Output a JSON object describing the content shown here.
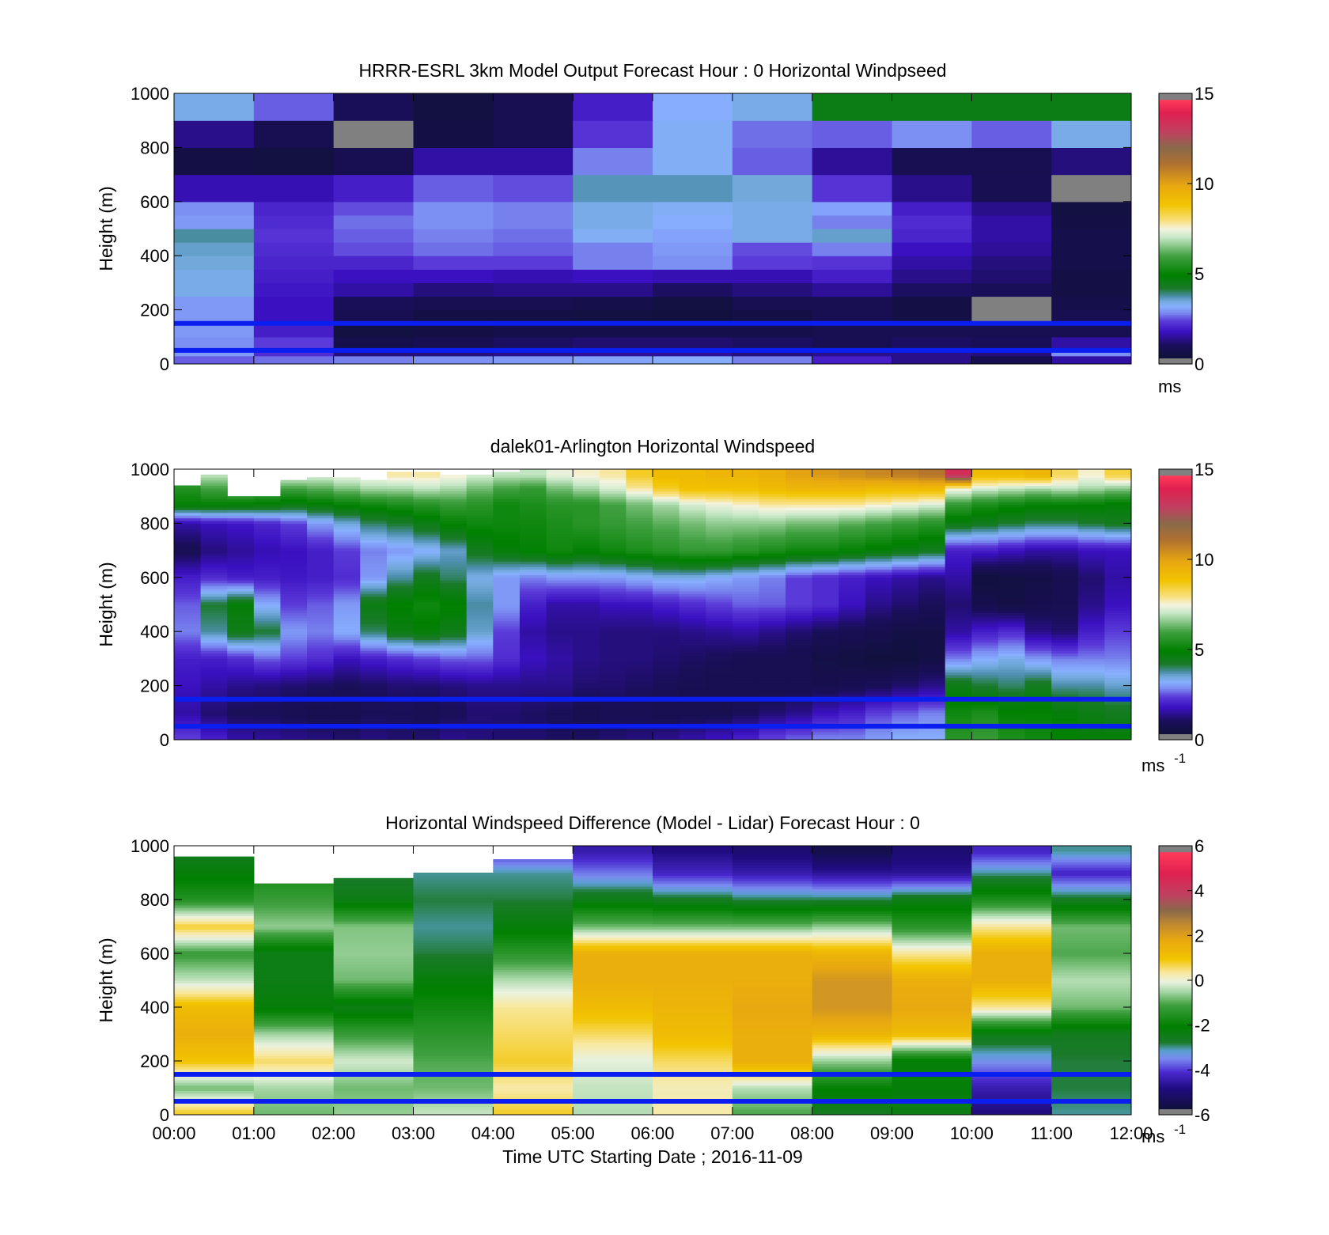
{
  "chart_data": [
    {
      "type": "heatmap",
      "title": "HRRR-ESRL 3km Model Output   Forecast Hour : 0 Horizontal Windpseed",
      "xlabel": "",
      "ylabel": "Height (m)",
      "xlim": [
        "00:00",
        "12:00"
      ],
      "ylim": [
        0,
        1000
      ],
      "yticks": [
        0,
        200,
        400,
        600,
        800,
        1000
      ],
      "colorbar": {
        "range": [
          0,
          15
        ],
        "ticks": [
          0,
          5,
          10,
          15
        ],
        "unit": "ms",
        "unit_sup": ""
      },
      "reference_lines_m": [
        150,
        50
      ],
      "grid": false,
      "n_time": 12,
      "height_bins": [
        0,
        30,
        60,
        100,
        150,
        200,
        250,
        300,
        350,
        400,
        450,
        500,
        550,
        600,
        700,
        800,
        900,
        1000
      ],
      "values": [
        [
          2.6,
          2.7,
          2.8,
          2.9,
          3.0,
          3.1,
          3.2,
          2.8,
          2.0,
          1.4,
          0.9,
          1.6
        ],
        [
          3.0,
          2.2,
          1.3,
          1.3,
          1.4,
          1.5,
          1.5,
          1.3,
          1.4,
          1.4,
          1.3,
          2.9
        ],
        [
          2.9,
          2.4,
          0.7,
          0.9,
          1.1,
          1.2,
          1.2,
          1.1,
          0.9,
          1.1,
          1.0,
          1.6
        ],
        [
          3.0,
          2.0,
          0.5,
          0.6,
          0.7,
          0.7,
          0.7,
          0.7,
          0.8,
          0.8,
          0.9,
          0.9
        ],
        [
          3.0,
          1.8,
          0.9,
          0.6,
          0.6,
          0.5,
          0.4,
          0.6,
          0.9,
          0.6,
          0.0,
          0.8
        ],
        [
          3.0,
          1.8,
          1.0,
          0.8,
          0.8,
          0.7,
          0.5,
          0.8,
          0.9,
          0.6,
          0.0,
          0.7
        ],
        [
          3.4,
          1.9,
          1.6,
          1.3,
          1.4,
          1.4,
          1.1,
          1.3,
          1.5,
          1.1,
          1.0,
          0.6
        ],
        [
          3.4,
          2.0,
          1.8,
          1.8,
          1.7,
          1.8,
          1.7,
          1.7,
          2.0,
          1.4,
          1.2,
          0.6
        ],
        [
          3.5,
          2.1,
          2.1,
          2.4,
          2.4,
          2.8,
          2.9,
          2.4,
          2.3,
          1.6,
          1.3,
          0.7
        ],
        [
          3.6,
          2.2,
          2.5,
          2.7,
          2.6,
          2.8,
          3.0,
          2.5,
          2.8,
          1.8,
          1.5,
          0.7
        ],
        [
          3.8,
          2.3,
          2.6,
          2.8,
          2.7,
          3.3,
          3.1,
          3.4,
          3.6,
          2.1,
          1.6,
          0.7
        ],
        [
          3.0,
          2.2,
          2.7,
          2.9,
          2.8,
          3.4,
          3.2,
          3.4,
          2.8,
          2.2,
          1.6,
          0.6
        ],
        [
          2.9,
          2.1,
          2.5,
          2.9,
          2.8,
          3.4,
          3.3,
          3.4,
          3.1,
          2.0,
          1.4,
          0.5
        ],
        [
          1.7,
          1.7,
          2.0,
          2.6,
          2.5,
          3.7,
          3.7,
          3.5,
          2.3,
          1.4,
          0.9,
          0.0
        ],
        [
          0.6,
          0.5,
          0.8,
          1.6,
          1.6,
          2.8,
          3.3,
          2.6,
          1.5,
          0.9,
          0.8,
          1.3
        ],
        [
          1.4,
          0.8,
          0.0,
          0.6,
          0.9,
          2.3,
          3.3,
          2.7,
          2.6,
          2.9,
          2.6,
          3.4
        ],
        [
          3.4,
          2.6,
          1.0,
          0.5,
          0.9,
          2.0,
          3.2,
          3.4,
          4.6,
          4.6,
          4.6,
          4.6
        ]
      ]
    },
    {
      "type": "heatmap",
      "title": "dalek01-Arlington  Horizontal Windspeed",
      "xlabel": "",
      "ylabel": "Height (m)",
      "xlim": [
        "00:00",
        "12:00"
      ],
      "ylim": [
        0,
        1000
      ],
      "yticks": [
        0,
        200,
        400,
        600,
        800,
        1000
      ],
      "colorbar": {
        "range": [
          0,
          15
        ],
        "ticks": [
          0,
          5,
          10,
          15
        ],
        "unit": "ms",
        "unit_sup": "-1"
      },
      "reference_lines_m": [
        150,
        50
      ],
      "grid": false,
      "n_time": 36,
      "z_knots_m": [
        10,
        100,
        200,
        300,
        400,
        500,
        600,
        700,
        800,
        870,
        930,
        980
      ],
      "profiles": [
        [
          2.4,
          1.6,
          1.8,
          2.0,
          2.8,
          2.6,
          2.0,
          0.9,
          1.6,
          5.0,
          5.5,
          6.2
        ],
        [
          2.0,
          1.2,
          1.6,
          2.0,
          3.8,
          4.2,
          2.2,
          1.3,
          1.8,
          5.0,
          6.0,
          7.0
        ],
        [
          1.6,
          1.0,
          1.4,
          2.2,
          4.5,
          4.8,
          2.0,
          1.5,
          1.9,
          4.9,
          6.5,
          7.4
        ],
        [
          1.5,
          1.0,
          1.3,
          2.6,
          4.2,
          3.2,
          2.0,
          1.7,
          2.1,
          4.8,
          6.3,
          7.6
        ],
        [
          1.4,
          0.9,
          1.2,
          2.4,
          3.0,
          2.4,
          1.9,
          1.8,
          2.4,
          4.6,
          6.0,
          7.5
        ],
        [
          1.3,
          0.8,
          1.1,
          2.2,
          2.8,
          2.6,
          2.0,
          2.0,
          3.0,
          4.8,
          6.2,
          7.3
        ],
        [
          1.2,
          0.8,
          1.0,
          1.8,
          3.2,
          3.0,
          2.2,
          2.4,
          3.5,
          5.0,
          6.5,
          7.5
        ],
        [
          1.3,
          1.0,
          1.1,
          2.0,
          4.0,
          4.6,
          3.0,
          2.8,
          4.0,
          5.2,
          6.8,
          7.6
        ],
        [
          1.2,
          1.0,
          1.2,
          2.2,
          4.6,
          5.0,
          3.8,
          3.0,
          4.2,
          5.4,
          6.8,
          7.8
        ],
        [
          1.2,
          0.9,
          1.2,
          2.4,
          4.8,
          5.2,
          4.4,
          3.2,
          4.6,
          5.6,
          7.0,
          7.8
        ],
        [
          1.4,
          1.0,
          1.3,
          2.6,
          4.5,
          5.0,
          4.0,
          3.6,
          5.0,
          5.8,
          6.8,
          7.6
        ],
        [
          1.3,
          1.2,
          1.4,
          2.6,
          3.6,
          3.8,
          3.4,
          4.4,
          5.2,
          5.6,
          6.4,
          7.2
        ],
        [
          1.2,
          1.2,
          1.4,
          2.2,
          2.4,
          3.0,
          3.0,
          4.8,
          5.2,
          5.2,
          6.0,
          7.0
        ],
        [
          1.2,
          1.1,
          1.4,
          1.8,
          1.6,
          2.0,
          2.8,
          5.0,
          5.2,
          5.4,
          5.8,
          7.0
        ],
        [
          1.1,
          1.0,
          1.4,
          1.6,
          1.4,
          1.6,
          3.0,
          5.2,
          5.4,
          5.6,
          6.4,
          7.4
        ],
        [
          1.1,
          0.8,
          1.2,
          1.4,
          1.4,
          1.6,
          3.0,
          5.0,
          5.6,
          5.6,
          6.8,
          7.6
        ],
        [
          1.2,
          0.9,
          1.2,
          1.3,
          1.3,
          1.8,
          3.0,
          5.2,
          5.8,
          6.0,
          7.2,
          7.8
        ],
        [
          1.3,
          0.9,
          1.1,
          1.3,
          1.3,
          1.8,
          3.2,
          5.4,
          6.0,
          6.4,
          7.8,
          8.6
        ],
        [
          1.4,
          0.8,
          1.0,
          1.2,
          1.3,
          2.0,
          3.4,
          5.6,
          6.2,
          6.8,
          8.6,
          9.2
        ],
        [
          1.6,
          0.8,
          0.9,
          1.1,
          1.4,
          2.2,
          3.4,
          5.8,
          6.4,
          7.2,
          9.0,
          9.2
        ],
        [
          1.8,
          0.8,
          0.8,
          1.0,
          1.5,
          2.4,
          3.2,
          5.8,
          6.6,
          7.4,
          9.0,
          9.4
        ],
        [
          2.0,
          1.0,
          0.8,
          0.9,
          1.6,
          2.6,
          3.0,
          5.6,
          6.6,
          7.6,
          9.0,
          9.4
        ],
        [
          2.4,
          1.2,
          0.8,
          0.9,
          1.4,
          2.6,
          2.8,
          5.4,
          6.6,
          7.8,
          9.2,
          9.6
        ],
        [
          2.6,
          1.4,
          0.8,
          0.8,
          1.2,
          2.4,
          2.4,
          5.2,
          6.4,
          7.8,
          9.4,
          10.0
        ],
        [
          2.8,
          1.8,
          0.8,
          0.6,
          1.0,
          2.2,
          2.2,
          5.2,
          6.4,
          7.8,
          9.4,
          10.2
        ],
        [
          2.8,
          2.0,
          0.9,
          0.5,
          0.9,
          1.8,
          2.0,
          5.0,
          6.2,
          7.8,
          9.4,
          10.4
        ],
        [
          3.0,
          2.4,
          1.0,
          0.4,
          0.8,
          1.4,
          1.8,
          4.8,
          6.0,
          7.6,
          9.2,
          10.6
        ],
        [
          3.2,
          2.6,
          1.2,
          0.4,
          0.6,
          1.2,
          1.6,
          4.6,
          5.8,
          7.4,
          9.2,
          10.8
        ],
        [
          3.2,
          2.8,
          1.4,
          0.6,
          0.6,
          1.0,
          1.4,
          4.4,
          5.6,
          7.2,
          9.2,
          11.0
        ],
        [
          5.6,
          5.2,
          4.6,
          2.8,
          1.6,
          1.2,
          1.6,
          2.0,
          4.6,
          5.8,
          7.6,
          13.5
        ],
        [
          5.8,
          5.4,
          4.2,
          3.2,
          2.0,
          0.8,
          0.4,
          2.0,
          4.4,
          5.4,
          7.2,
          9.2
        ],
        [
          5.4,
          5.0,
          4.0,
          3.4,
          2.2,
          0.6,
          0.5,
          1.8,
          4.2,
          5.2,
          7.0,
          9.2
        ],
        [
          5.2,
          5.0,
          4.4,
          3.0,
          1.4,
          0.8,
          0.6,
          1.6,
          4.0,
          5.0,
          6.8,
          9.4
        ],
        [
          5.0,
          4.8,
          3.8,
          2.8,
          1.2,
          0.9,
          0.8,
          1.6,
          4.0,
          5.0,
          7.0,
          8.2
        ],
        [
          4.8,
          4.6,
          3.8,
          2.8,
          2.0,
          1.4,
          1.2,
          1.8,
          4.2,
          5.0,
          6.8,
          7.6
        ],
        [
          4.8,
          4.4,
          3.6,
          2.8,
          2.4,
          1.8,
          1.6,
          1.8,
          4.4,
          4.8,
          6.6,
          8.4
        ]
      ],
      "top_m": [
        940,
        980,
        900,
        900,
        960,
        970,
        970,
        960,
        990,
        990,
        980,
        980,
        990,
        1000,
        1000,
        1000,
        1000,
        1000,
        1000,
        1000,
        1000,
        1000,
        1000,
        1000,
        1000,
        1000,
        1000,
        1000,
        1000,
        1000,
        1000,
        1000,
        1000,
        1000,
        1000,
        1000
      ]
    },
    {
      "type": "heatmap",
      "title": "Horizontal Windspeed Difference (Model - Lidar) Forecast Hour : 0",
      "xlabel": "Time UTC  Starting Date ; 2016-11-09",
      "ylabel": "Height (m)",
      "xticks": [
        "00:00",
        "01:00",
        "02:00",
        "03:00",
        "04:00",
        "05:00",
        "06:00",
        "07:00",
        "08:00",
        "09:00",
        "10:00",
        "11:00",
        "12:00"
      ],
      "ylim": [
        0,
        1000
      ],
      "yticks": [
        0,
        200,
        400,
        600,
        800,
        1000
      ],
      "colorbar": {
        "range": [
          -6,
          6
        ],
        "ticks": [
          -6,
          -4,
          -2,
          0,
          2,
          4,
          6
        ],
        "unit": "ms",
        "unit_sup": "-1"
      },
      "reference_lines_m": [
        150,
        50
      ],
      "grid": false,
      "n_time": 12,
      "z_knots_m": [
        10,
        100,
        200,
        300,
        400,
        500,
        600,
        700,
        800,
        900,
        980
      ],
      "profiles": [
        [
          0.8,
          -0.8,
          1.0,
          1.6,
          1.2,
          -0.3,
          -1.2,
          0.8,
          -1.5,
          -2.2,
          -2.6
        ],
        [
          -0.8,
          -0.5,
          0.6,
          -0.5,
          -2.2,
          -2.4,
          -2.4,
          -0.6,
          -1.2,
          -1.8,
          -2.2
        ],
        [
          -0.6,
          -0.8,
          -0.2,
          -1.2,
          -2.4,
          -0.8,
          -0.6,
          -0.7,
          -2.4,
          -2.8,
          -3.0
        ],
        [
          -0.3,
          -0.8,
          -1.0,
          -1.4,
          -1.8,
          -2.2,
          -2.8,
          -3.0,
          -2.8,
          -3.0,
          -3.2
        ],
        [
          0.8,
          0.3,
          0.8,
          0.6,
          0.4,
          -0.4,
          -1.4,
          -2.2,
          -2.8,
          -3.0,
          -4.2
        ],
        [
          -0.4,
          -0.3,
          -0.1,
          0.6,
          1.2,
          1.6,
          1.6,
          -0.8,
          -2.4,
          -3.6,
          -4.4
        ],
        [
          0.3,
          0.2,
          0.6,
          1.2,
          1.4,
          1.6,
          1.6,
          -0.8,
          -2.6,
          -4.2,
          -4.8
        ],
        [
          -1.0,
          -0.4,
          1.6,
          1.6,
          1.8,
          1.6,
          1.6,
          -0.8,
          -2.8,
          -4.4,
          -5.0
        ],
        [
          -2.6,
          -2.0,
          -0.6,
          1.4,
          2.2,
          2.2,
          1.4,
          -0.6,
          -2.8,
          -4.6,
          -5.5
        ],
        [
          -2.4,
          -2.2,
          -2.2,
          1.2,
          1.8,
          1.6,
          0.4,
          -1.4,
          -2.4,
          -4.6,
          -5.0
        ],
        [
          -4.8,
          -4.4,
          -3.4,
          -2.4,
          0.4,
          1.6,
          1.6,
          0.4,
          -1.6,
          -3.0,
          -4.2
        ],
        [
          -3.0,
          -2.8,
          -2.8,
          -2.6,
          -0.8,
          -0.4,
          -1.0,
          -0.8,
          -2.6,
          -4.2,
          -3.0
        ]
      ],
      "top_m": [
        960,
        860,
        880,
        900,
        950,
        1000,
        1000,
        1000,
        1000,
        1000,
        1000,
        1000
      ]
    }
  ]
}
